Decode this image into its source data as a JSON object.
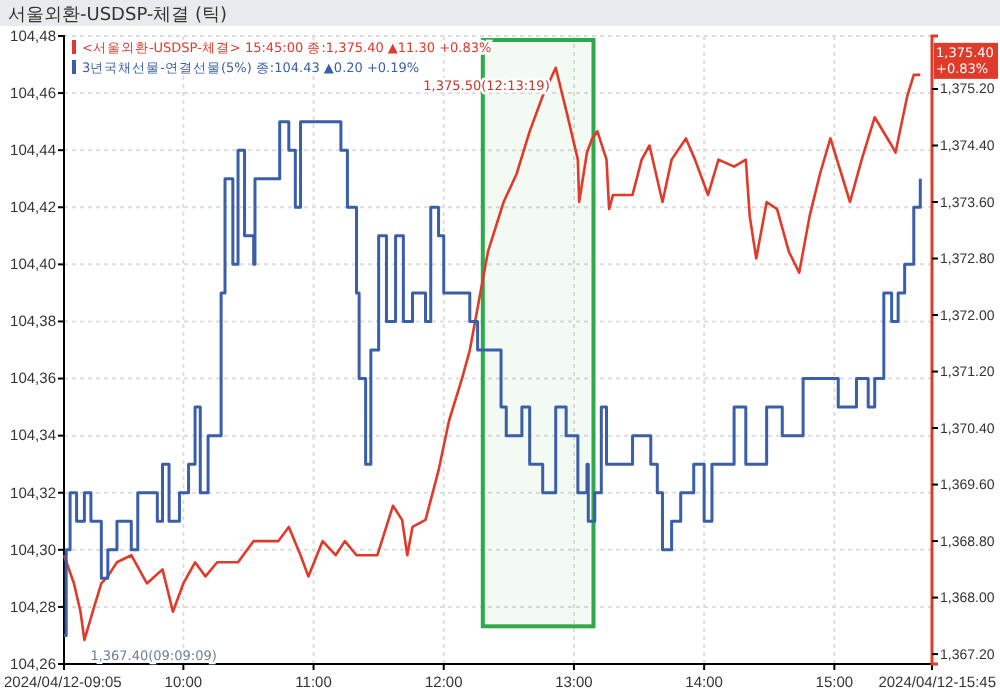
{
  "chart_data": {
    "type": "line",
    "title": "서울외환-USDSP-체결 (틱)",
    "xlim": [
      9.0833,
      15.75
    ],
    "xticks": [
      {
        "value": 9.0833,
        "label": "2024/04/12-09:05"
      },
      {
        "value": 10,
        "label": "10:00"
      },
      {
        "value": 11,
        "label": "11:00"
      },
      {
        "value": 12,
        "label": "12:00"
      },
      {
        "value": 13,
        "label": "13:00"
      },
      {
        "value": 14,
        "label": "14:00"
      },
      {
        "value": 15,
        "label": "15:00"
      },
      {
        "value": 15.75,
        "label": "2024/04/12-15:45"
      }
    ],
    "ylim": [
      104.26,
      104.48
    ],
    "yticks": [
      {
        "value": 104.26,
        "label": "104,26"
      },
      {
        "value": 104.28,
        "label": "104,28"
      },
      {
        "value": 104.3,
        "label": "104,30"
      },
      {
        "value": 104.32,
        "label": "104,32"
      },
      {
        "value": 104.34,
        "label": "104,34"
      },
      {
        "value": 104.36,
        "label": "104,36"
      },
      {
        "value": 104.38,
        "label": "104,38"
      },
      {
        "value": 104.4,
        "label": "104,40"
      },
      {
        "value": 104.42,
        "label": "104,42"
      },
      {
        "value": 104.44,
        "label": "104,44"
      },
      {
        "value": 104.46,
        "label": "104,46"
      },
      {
        "value": 104.48,
        "label": "104,48"
      }
    ],
    "y2lim": [
      1367.06,
      1375.95
    ],
    "y2ticks": [
      {
        "value": 1367.2,
        "label": "1,367.20"
      },
      {
        "value": 1368,
        "label": "1,368.00"
      },
      {
        "value": 1368.8,
        "label": "1,368.80"
      },
      {
        "value": 1369.6,
        "label": "1,369.60"
      },
      {
        "value": 1370.4,
        "label": "1,370.40"
      },
      {
        "value": 1371.2,
        "label": "1,371.20"
      },
      {
        "value": 1372,
        "label": "1,372.00"
      },
      {
        "value": 1372.8,
        "label": "1,372.80"
      },
      {
        "value": 1373.6,
        "label": "1,373.60"
      },
      {
        "value": 1374.4,
        "label": "1,374.40"
      },
      {
        "value": 1375.2,
        "label": "1,375.20"
      }
    ],
    "grid": true,
    "legend": "top left",
    "series": [
      {
        "name": "<서울외환-USDSP-체결> 15:45:00 종:1,375.40 ▲11.30 +0.83%",
        "type": "line",
        "axis": "y2",
        "color": "#e03a2a",
        "x": [
          9.0833,
          9.16,
          9.21,
          9.24,
          9.32,
          9.37,
          9.42,
          9.49,
          9.6,
          9.72,
          9.84,
          9.92,
          10,
          10.09,
          10.17,
          10.26,
          10.42,
          10.54,
          10.73,
          10.81,
          10.9,
          10.96,
          11.07,
          11.17,
          11.24,
          11.33,
          11.49,
          11.61,
          11.68,
          11.72,
          11.76,
          11.86,
          11.96,
          12.04,
          12.14,
          12.2,
          12.34,
          12.46,
          12.56,
          12.66,
          12.76,
          12.86,
          12.94,
          13.03,
          13.04,
          13.1,
          13.14,
          13.18,
          13.25,
          13.27,
          13.3,
          13.45,
          13.52,
          13.58,
          13.68,
          13.75,
          13.86,
          13.93,
          14.03,
          14.11,
          14.23,
          14.32,
          14.35,
          14.4,
          14.48,
          14.56,
          14.65,
          14.73,
          14.81,
          14.89,
          14.97,
          15.12,
          15.21,
          15.31,
          15.44,
          15.47,
          15.56,
          15.61,
          15.66
        ],
        "values": [
          1368.6,
          1368.2,
          1367.8,
          1367.4,
          1367.9,
          1368.2,
          1368.3,
          1368.5,
          1368.6,
          1368.2,
          1368.4,
          1367.8,
          1368.2,
          1368.5,
          1368.3,
          1368.5,
          1368.5,
          1368.8,
          1368.8,
          1369.0,
          1368.6,
          1368.3,
          1368.8,
          1368.6,
          1368.8,
          1368.6,
          1368.6,
          1369.3,
          1369.1,
          1368.6,
          1369.0,
          1369.1,
          1369.8,
          1370.5,
          1371.1,
          1371.5,
          1372.9,
          1373.6,
          1374.0,
          1374.6,
          1375.1,
          1375.5,
          1374.9,
          1374.2,
          1373.6,
          1374.3,
          1374.5,
          1374.6,
          1374.2,
          1373.5,
          1373.7,
          1373.7,
          1374.2,
          1374.4,
          1373.6,
          1374.2,
          1374.5,
          1374.2,
          1373.7,
          1374.2,
          1374.1,
          1374.2,
          1373.4,
          1372.8,
          1373.6,
          1373.5,
          1372.9,
          1372.6,
          1373.4,
          1374.0,
          1374.5,
          1373.6,
          1374.2,
          1374.8,
          1374.4,
          1374.3,
          1375.1,
          1375.4,
          1375.4
        ]
      },
      {
        "name": "3년국채선물-연결선물(5%) 종:104.43 ▲0.20 +0.19%",
        "type": "step",
        "color": "#3a5fa8",
        "x": [
          9.0833,
          9.1,
          9.13,
          9.18,
          9.24,
          9.29,
          9.37,
          9.42,
          9.49,
          9.6,
          9.65,
          9.72,
          9.8,
          9.84,
          9.89,
          9.97,
          10.04,
          10.09,
          10.13,
          10.19,
          10.26,
          10.29,
          10.32,
          10.38,
          10.42,
          10.47,
          10.54,
          10.55,
          10.73,
          10.74,
          10.81,
          10.86,
          10.9,
          11.17,
          11.21,
          11.26,
          11.33,
          11.35,
          11.4,
          11.44,
          11.5,
          11.56,
          11.63,
          11.69,
          11.76,
          11.86,
          11.9,
          11.96,
          12,
          12.2,
          12.26,
          12.44,
          12.48,
          12.6,
          12.66,
          12.76,
          12.86,
          12.94,
          13.03,
          13.1,
          13.11,
          13.16,
          13.21,
          13.25,
          13.45,
          13.59,
          13.64,
          13.68,
          13.75,
          13.82,
          13.92,
          14,
          14.06,
          14.23,
          14.32,
          14.48,
          14.6,
          14.76,
          14.97,
          15.03,
          15.17,
          15.26,
          15.31,
          15.38,
          15.44,
          15.49,
          15.54,
          15.61,
          15.66
        ],
        "values": [
          104.27,
          104.3,
          104.32,
          104.31,
          104.32,
          104.31,
          104.29,
          104.3,
          104.31,
          104.3,
          104.32,
          104.32,
          104.31,
          104.33,
          104.31,
          104.32,
          104.33,
          104.35,
          104.32,
          104.34,
          104.34,
          104.39,
          104.43,
          104.4,
          104.44,
          104.41,
          104.4,
          104.43,
          104.43,
          104.45,
          104.44,
          104.42,
          104.45,
          104.45,
          104.44,
          104.42,
          104.39,
          104.36,
          104.33,
          104.37,
          104.41,
          104.38,
          104.41,
          104.38,
          104.39,
          104.38,
          104.42,
          104.41,
          104.39,
          104.38,
          104.37,
          104.35,
          104.34,
          104.35,
          104.33,
          104.32,
          104.35,
          104.34,
          104.32,
          104.33,
          104.31,
          104.32,
          104.35,
          104.33,
          104.34,
          104.33,
          104.32,
          104.3,
          104.31,
          104.32,
          104.33,
          104.31,
          104.33,
          104.35,
          104.33,
          104.35,
          104.34,
          104.36,
          104.36,
          104.35,
          104.36,
          104.35,
          104.36,
          104.39,
          104.38,
          104.39,
          104.4,
          104.42,
          104.43
        ]
      }
    ],
    "bands": [
      {
        "axis": "x",
        "from": 12.3,
        "to": 13.15,
        "color": "#2eaa4a"
      }
    ],
    "annotations": [
      {
        "text": "1,375.50(12:13:19)",
        "x": 12.86,
        "y": 104.466
      },
      {
        "text": "1,367.40(09:09:09)",
        "x": 9.24,
        "y": 104.267
      },
      "1,375.40 +0.83%"
    ]
  }
}
